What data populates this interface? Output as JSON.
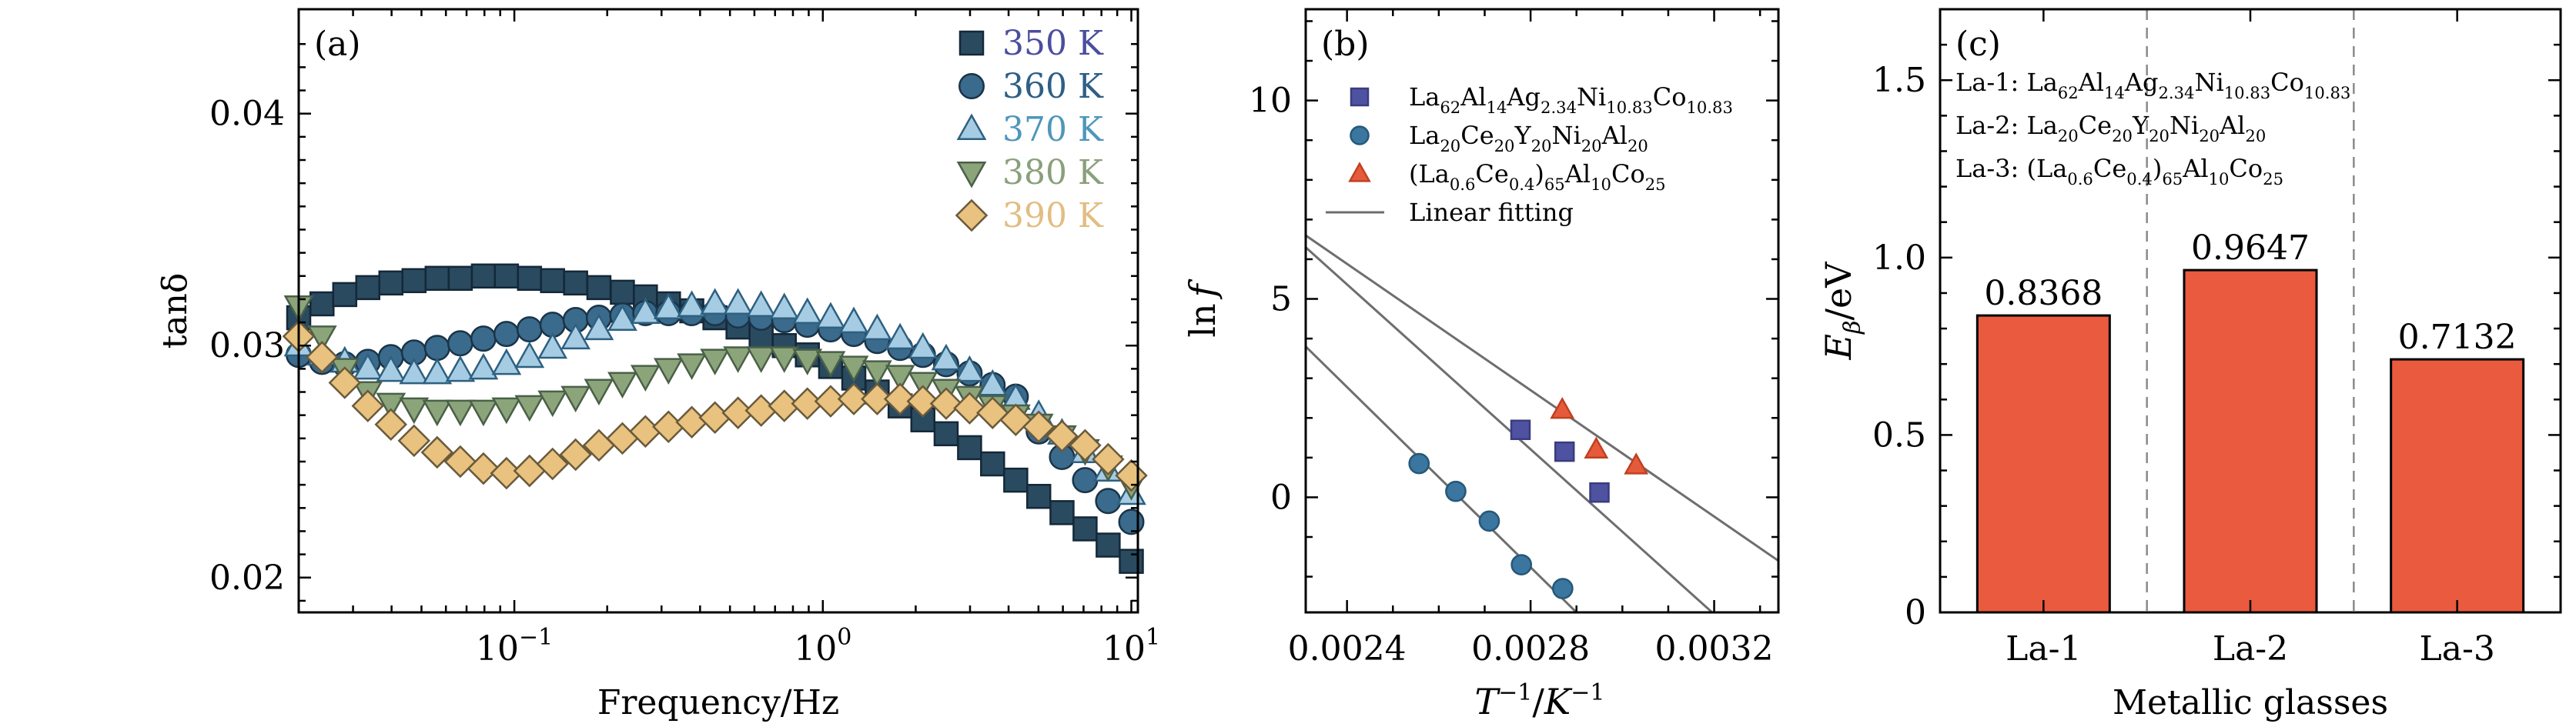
{
  "chart_data": [
    {
      "type": "scatter",
      "panel_label": "(a)",
      "xlabel": "Frequency/Hz",
      "ylabel": "tanδ",
      "xscale": "log",
      "xlim": [
        0.02,
        10.5
      ],
      "ylim": [
        0.0185,
        0.0445
      ],
      "xticks": [
        {
          "value": 0.1,
          "base": "10",
          "exp": "−1"
        },
        {
          "value": 1,
          "base": "10",
          "exp": "0"
        },
        {
          "value": 10,
          "base": "10",
          "exp": "1"
        }
      ],
      "yticks": [
        {
          "value": 0.02,
          "label": "0.02"
        },
        {
          "value": 0.03,
          "label": "0.03"
        },
        {
          "value": 0.04,
          "label": "0.04"
        }
      ],
      "legend_position": "top-right",
      "x": [
        0.02,
        0.0238,
        0.0282,
        0.0335,
        0.0398,
        0.0473,
        0.0562,
        0.0668,
        0.0794,
        0.0943,
        0.112,
        0.133,
        0.158,
        0.188,
        0.224,
        0.266,
        0.316,
        0.376,
        0.447,
        0.531,
        0.631,
        0.75,
        0.891,
        1.06,
        1.26,
        1.5,
        1.78,
        2.11,
        2.51,
        2.99,
        3.55,
        4.22,
        5.01,
        5.96,
        7.08,
        8.41,
        10.0
      ],
      "series": [
        {
          "name": "350 K",
          "marker": "square",
          "fill": "#2a4a60",
          "edge": "#142838",
          "text_color": "#4b4e9e",
          "values": [
            0.0312,
            0.0318,
            0.0322,
            0.0325,
            0.0327,
            0.0328,
            0.0329,
            0.0329,
            0.033,
            0.033,
            0.0329,
            0.0328,
            0.0327,
            0.0325,
            0.0323,
            0.0321,
            0.0318,
            0.0315,
            0.0312,
            0.0308,
            0.0304,
            0.03,
            0.0296,
            0.0291,
            0.0286,
            0.028,
            0.0274,
            0.0268,
            0.0262,
            0.0256,
            0.0249,
            0.0242,
            0.0235,
            0.0228,
            0.0221,
            0.0214,
            0.0207
          ]
        },
        {
          "name": "360 K",
          "marker": "circle",
          "fill": "#3a6a8c",
          "edge": "#1a3448",
          "text_color": "#2e5f86",
          "values": [
            0.0296,
            0.0293,
            0.0292,
            0.0293,
            0.0295,
            0.0297,
            0.0299,
            0.0301,
            0.0303,
            0.0305,
            0.0307,
            0.0309,
            0.0311,
            0.0312,
            0.0313,
            0.0314,
            0.0314,
            0.0314,
            0.0314,
            0.0313,
            0.0312,
            0.0311,
            0.0309,
            0.0307,
            0.0305,
            0.0302,
            0.0299,
            0.0296,
            0.0292,
            0.0288,
            0.0283,
            0.0278,
            0.0263,
            0.0252,
            0.0242,
            0.0233,
            0.0224
          ]
        },
        {
          "name": "370 K",
          "marker": "triangle-up",
          "fill": "#a6cce4",
          "edge": "#2e6080",
          "text_color": "#4f96bb",
          "values": [
            0.03,
            0.0296,
            0.0293,
            0.029,
            0.0289,
            0.0288,
            0.0288,
            0.0289,
            0.029,
            0.0292,
            0.0295,
            0.0299,
            0.0303,
            0.0307,
            0.0311,
            0.0314,
            0.0316,
            0.0317,
            0.0318,
            0.0318,
            0.0317,
            0.0316,
            0.0314,
            0.0312,
            0.031,
            0.0307,
            0.0303,
            0.0299,
            0.0294,
            0.0289,
            0.0283,
            0.0277,
            0.027,
            0.0262,
            0.0254,
            0.0246,
            0.0236
          ]
        },
        {
          "name": "380 K",
          "marker": "triangle-down",
          "fill": "#8ca47a",
          "edge": "#4a6048",
          "text_color": "#8aa07c",
          "values": [
            0.0317,
            0.0304,
            0.029,
            0.028,
            0.0275,
            0.0273,
            0.0272,
            0.0272,
            0.0272,
            0.0273,
            0.0274,
            0.0276,
            0.0278,
            0.0281,
            0.0284,
            0.0287,
            0.029,
            0.0292,
            0.0294,
            0.0295,
            0.0295,
            0.0295,
            0.0294,
            0.0293,
            0.0291,
            0.0289,
            0.0287,
            0.0284,
            0.0281,
            0.0278,
            0.0274,
            0.027,
            0.0266,
            0.0261,
            0.0255,
            0.0248,
            0.024
          ]
        },
        {
          "name": "390 K",
          "marker": "diamond",
          "fill": "#e8c27e",
          "edge": "#6a5a3c",
          "text_color": "#e2bd82",
          "values": [
            0.0304,
            0.0295,
            0.0284,
            0.0274,
            0.0266,
            0.0259,
            0.0254,
            0.025,
            0.0247,
            0.0245,
            0.0246,
            0.0249,
            0.0253,
            0.0257,
            0.026,
            0.0263,
            0.0265,
            0.0267,
            0.0269,
            0.0271,
            0.0272,
            0.0274,
            0.0275,
            0.0276,
            0.0277,
            0.0277,
            0.0277,
            0.0276,
            0.0275,
            0.0273,
            0.0271,
            0.0268,
            0.0265,
            0.0261,
            0.0257,
            0.0251,
            0.0244
          ]
        }
      ]
    },
    {
      "type": "scatter",
      "panel_label": "(b)",
      "xlabel_parts": {
        "t": "T",
        "t_exp": "−1",
        "sep": "/",
        "k": "K",
        "k_exp": "−1"
      },
      "ylabel_parts": {
        "ln": "ln",
        "f": "f"
      },
      "xlim": [
        0.00231,
        0.00334
      ],
      "ylim": [
        -2.9,
        12.3
      ],
      "xticks": [
        {
          "value": 0.0024,
          "label": "0.0024"
        },
        {
          "value": 0.0028,
          "label": "0.0028"
        },
        {
          "value": 0.0032,
          "label": "0.0032"
        }
      ],
      "yticks": [
        {
          "value": 0,
          "label": "0"
        },
        {
          "value": 5,
          "label": "5"
        },
        {
          "value": 10,
          "label": "10"
        }
      ],
      "legend_position": "top-right",
      "series": [
        {
          "name_base": "La",
          "name_parts": [
            [
              "La",
              ""
            ],
            [
              "62",
              ""
            ],
            [
              "Al",
              ""
            ],
            [
              "14",
              ""
            ],
            [
              "Ag",
              ""
            ],
            [
              "2.34",
              ""
            ],
            [
              "Ni",
              ""
            ],
            [
              "10.83",
              ""
            ],
            [
              "Co",
              ""
            ],
            [
              "10.83",
              ""
            ]
          ],
          "name": "La62Al14Ag2.34Ni10.83Co10.83",
          "marker": "square",
          "fill": "#4f52a0",
          "edge": "#3a3c80",
          "x": [
            0.002778,
            0.002874,
            0.00295
          ],
          "y": [
            1.7,
            1.15,
            0.12
          ]
        },
        {
          "name": "La20Ce20Y20Ni20Al20",
          "marker": "circle",
          "fill": "#3a76a0",
          "edge": "#265878",
          "x": [
            0.002557,
            0.002637,
            0.00271,
            0.00278,
            0.00287
          ],
          "y": [
            0.85,
            0.15,
            -0.6,
            -1.7,
            -2.3
          ]
        },
        {
          "name": "(La0.6Ce0.4)65Al10Co25",
          "marker": "triangle-up",
          "fill": "#e65a3c",
          "edge": "#c04020",
          "x": [
            0.002869,
            0.002943,
            0.00303
          ],
          "y": [
            2.2,
            1.2,
            0.8
          ]
        },
        {
          "name": "Linear fitting",
          "type": "line",
          "color": "#6e6e6e"
        }
      ],
      "fit_lines": [
        {
          "x": [
            0.00231,
            0.00334
          ],
          "y": [
            6.6,
            -1.6
          ]
        },
        {
          "x": [
            0.00231,
            0.00334
          ],
          "y": [
            6.3,
            -4.4
          ]
        },
        {
          "x": [
            0.00231,
            0.0029
          ],
          "y": [
            3.8,
            -2.9
          ]
        }
      ]
    },
    {
      "type": "bar",
      "panel_label": "(c)",
      "xlabel": "Metallic glasses",
      "ylabel_parts": {
        "e": "E",
        "sub": "β",
        "unit": "/eV"
      },
      "ylim": [
        0,
        1.7
      ],
      "yticks": [
        {
          "value": 0,
          "label": "0"
        },
        {
          "value": 0.5,
          "label": "0.5"
        },
        {
          "value": 1.0,
          "label": "1.0"
        },
        {
          "value": 1.5,
          "label": "1.5"
        }
      ],
      "categories": [
        "La-1",
        "La-2",
        "La-3"
      ],
      "values": [
        0.8368,
        0.9647,
        0.7132
      ],
      "value_labels": [
        "0.8368",
        "0.9647",
        "0.7132"
      ],
      "bar_color": "#ea5a3e",
      "annotations": [
        {
          "key": "La-1:",
          "alloy": "La62Al14Ag2.34Ni10.83Co10.83"
        },
        {
          "key": "La-2:",
          "alloy": "La20Ce20Y20Ni20Al20"
        },
        {
          "key": "La-3:",
          "alloy": "(La0.6Ce0.4)65Al10Co25"
        }
      ]
    }
  ]
}
